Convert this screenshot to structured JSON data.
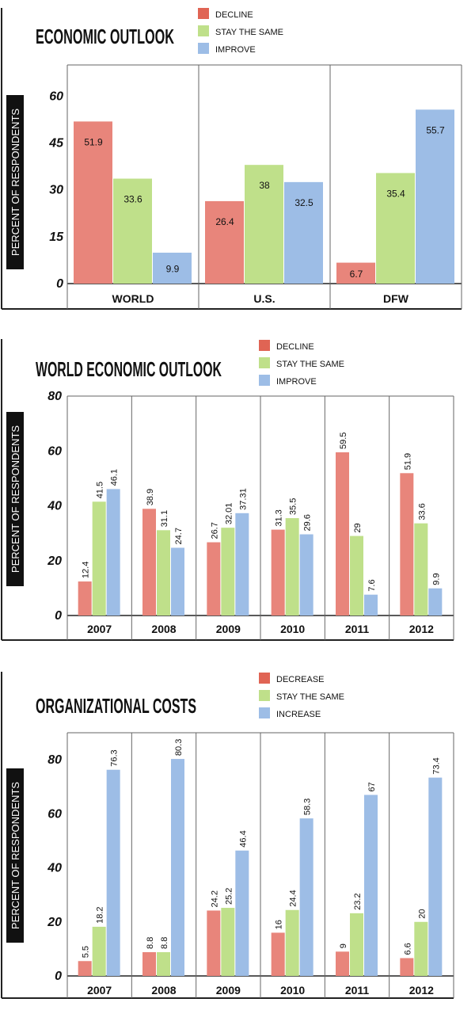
{
  "colors": {
    "decline": "#e8857b",
    "decline_legend": "#e06454",
    "same": "#bfe08a",
    "improve": "#9dbde6",
    "axis": "#222222",
    "grid": "#666666"
  },
  "chart_data": [
    {
      "type": "bar",
      "title": "ECONOMIC OUTLOOK",
      "ylabel": "PERCENT OF RESPONDENTS",
      "ylim": [
        0,
        70
      ],
      "yticks": [
        0,
        15,
        30,
        45,
        60
      ],
      "categories": [
        "WORLD",
        "U.S.",
        "DFW"
      ],
      "series": [
        {
          "name": "DECLINE",
          "values": [
            51.9,
            26.4,
            6.7
          ],
          "labels": [
            "51.9",
            "26.4",
            "6.7"
          ]
        },
        {
          "name": "STAY THE SAME",
          "values": [
            33.6,
            38,
            35.4
          ],
          "labels": [
            "33.6",
            "38",
            "35.4"
          ]
        },
        {
          "name": "IMPROVE",
          "values": [
            9.9,
            32.5,
            55.7
          ],
          "labels": [
            "9.9",
            "32.5",
            "55.7"
          ]
        }
      ],
      "grid": false,
      "legend": "top"
    },
    {
      "type": "bar",
      "title": "WORLD ECONOMIC OUTLOOK",
      "ylabel": "PERCENT OF RESPONDENTS",
      "ylim": [
        0,
        80
      ],
      "yticks": [
        0,
        20,
        40,
        60,
        80
      ],
      "categories": [
        "2007",
        "2008",
        "2009",
        "2010",
        "2011",
        "2012"
      ],
      "series": [
        {
          "name": "DECLINE",
          "values": [
            12.4,
            38.9,
            26.7,
            31.3,
            59.5,
            51.9
          ],
          "labels": [
            "12.4",
            "38.9",
            "26.7",
            "31.3",
            "59.5",
            "51.9"
          ]
        },
        {
          "name": "STAY THE SAME",
          "values": [
            41.5,
            31.1,
            32.01,
            35.5,
            29,
            33.6
          ],
          "labels": [
            "41.5",
            "31.1",
            "32.01",
            "35.5",
            "29",
            "33.6"
          ]
        },
        {
          "name": "IMPROVE",
          "values": [
            46.1,
            24.7,
            37.31,
            29.6,
            7.6,
            9.9
          ],
          "labels": [
            "46.1",
            "24.7",
            "37.31",
            "29.6",
            "7.6",
            "9.9"
          ]
        }
      ],
      "grid": false,
      "legend": "top"
    },
    {
      "type": "bar",
      "title": "ORGANIZATIONAL COSTS",
      "ylabel": "PERCENT OF RESPONDENTS",
      "ylim": [
        0,
        90
      ],
      "yticks": [
        0,
        20,
        40,
        60,
        80
      ],
      "categories": [
        "2007",
        "2008",
        "2009",
        "2010",
        "2011",
        "2012"
      ],
      "series": [
        {
          "name": "DECREASE",
          "values": [
            5.5,
            8.8,
            24.2,
            16,
            9,
            6.6
          ],
          "labels": [
            "5.5",
            "8.8",
            "24.2",
            "16",
            "9",
            "6.6"
          ]
        },
        {
          "name": "STAY THE SAME",
          "values": [
            18.2,
            8.8,
            25.2,
            24.4,
            23.2,
            20
          ],
          "labels": [
            "18.2",
            "8.8",
            "25.2",
            "24.4",
            "23.2",
            "20"
          ]
        },
        {
          "name": "INCREASE",
          "values": [
            76.3,
            80.3,
            46.4,
            58.3,
            67,
            73.4
          ],
          "labels": [
            "76.3",
            "80.3",
            "46.4",
            "58.3",
            "67",
            "73.4"
          ]
        }
      ],
      "grid": false,
      "legend": "top"
    }
  ]
}
